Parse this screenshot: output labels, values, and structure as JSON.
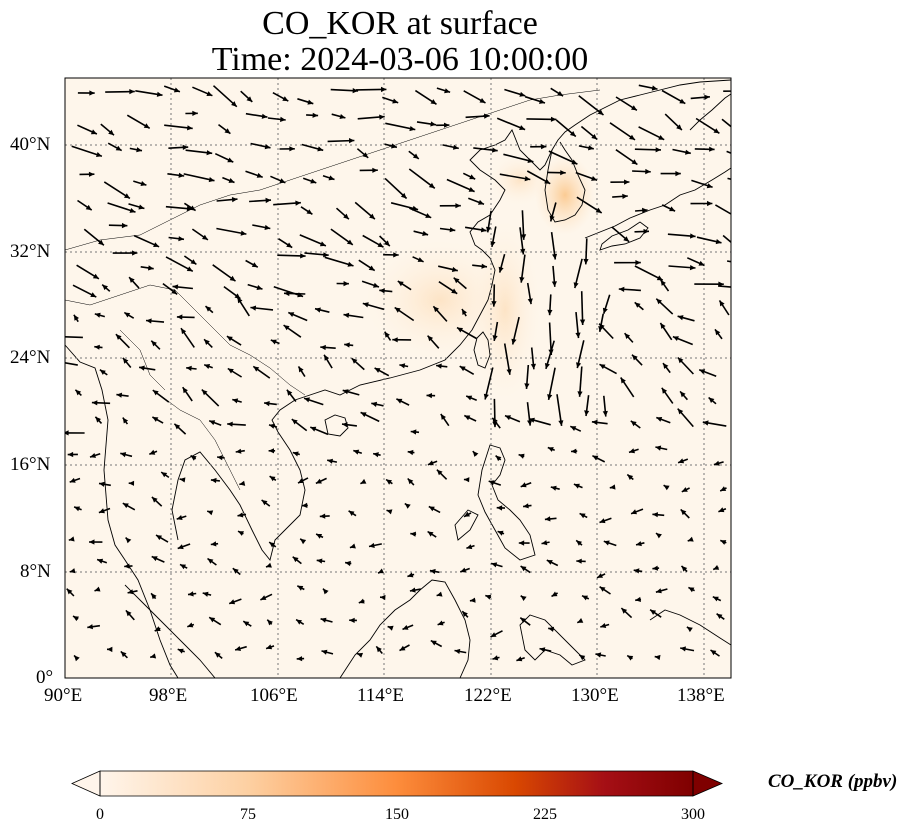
{
  "title_line1": "CO_KOR at surface",
  "title_line2": "Time: 2024-03-06 10:00:00",
  "lat_ticks": [
    "40°N",
    "32°N",
    "24°N",
    "16°N",
    "8°N",
    "0°"
  ],
  "lon_ticks": [
    "90°E",
    "98°E",
    "106°E",
    "114°E",
    "122°E",
    "130°E",
    "138°E"
  ],
  "colorbar": {
    "label": "CO_KOR (ppbv)",
    "ticks": [
      "0",
      "75",
      "150",
      "225",
      "300"
    ],
    "colors": [
      "#fff5eb",
      "#fdd0a2",
      "#fd8d3c",
      "#d94801",
      "#a50f15",
      "#7f0000"
    ],
    "range": [
      0,
      300
    ]
  },
  "map": {
    "lon_range": [
      90,
      140
    ],
    "lat_range": [
      0,
      45
    ],
    "background": "#fef6eb",
    "coastline_color": "#000000",
    "gridline_style": "dotted",
    "vector_field": "wind-arrows"
  }
}
